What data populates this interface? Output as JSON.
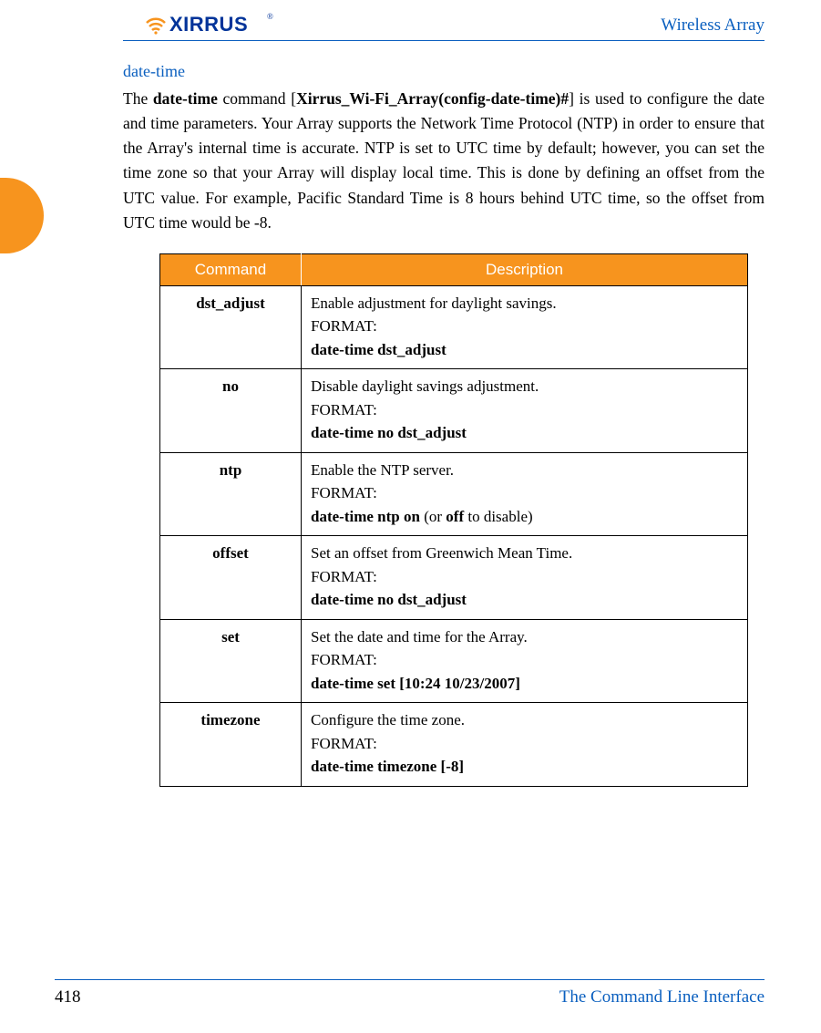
{
  "header": {
    "brand": "XIRRUS",
    "right_text": "Wireless Array"
  },
  "colors": {
    "brand_blue": "#0a5fbf",
    "accent_orange": "#f7941e",
    "logo_blue": "#003399"
  },
  "section": {
    "title": "date-time",
    "intro_parts": {
      "p1": "The ",
      "p2_b": "date-time",
      "p3": " command [",
      "p4_b": "Xirrus_Wi-Fi_Array(config-date-time)#",
      "p5": "] is used to configure the date and time parameters. Your Array supports the Network Time Protocol (NTP) in order to ensure that the Array's internal time is accurate. NTP is set to UTC time by default; however, you can set the time zone so that your Array will display local time. This is done by defining an offset from the UTC value. For example, Pacific Standard Time is 8 hours behind UTC time, so the offset from UTC time would be -8."
    }
  },
  "table": {
    "headers": {
      "command": "Command",
      "description": "Description"
    },
    "format_label": "FORMAT:",
    "rows": [
      {
        "command": "dst_adjust",
        "desc": "Enable adjustment for daylight savings.",
        "format_pre": "date-time dst_adjust",
        "format_mid": "",
        "format_post": ""
      },
      {
        "command": "no",
        "desc": "Disable daylight savings adjustment.",
        "format_pre": "date-time no dst_adjust",
        "format_mid": "",
        "format_post": ""
      },
      {
        "command": "ntp",
        "desc": "Enable the NTP server.",
        "format_pre": "date-time ntp on",
        "format_mid": " (or ",
        "format_post_bold": "off",
        "format_tail": " to disable)"
      },
      {
        "command": "offset",
        "desc": "Set an offset from Greenwich Mean Time.",
        "format_pre": "date-time no dst_adjust",
        "format_mid": "",
        "format_post": ""
      },
      {
        "command": "set",
        "desc": "Set the date and time for the Array.",
        "format_pre": "date-time set [10:24 10/23/2007]",
        "format_mid": "",
        "format_post": ""
      },
      {
        "command": "timezone",
        "desc": "Configure the time zone.",
        "format_pre": "date-time timezone [-8]",
        "format_mid": "",
        "format_post": ""
      }
    ]
  },
  "footer": {
    "page_number": "418",
    "section": "The Command Line Interface"
  }
}
